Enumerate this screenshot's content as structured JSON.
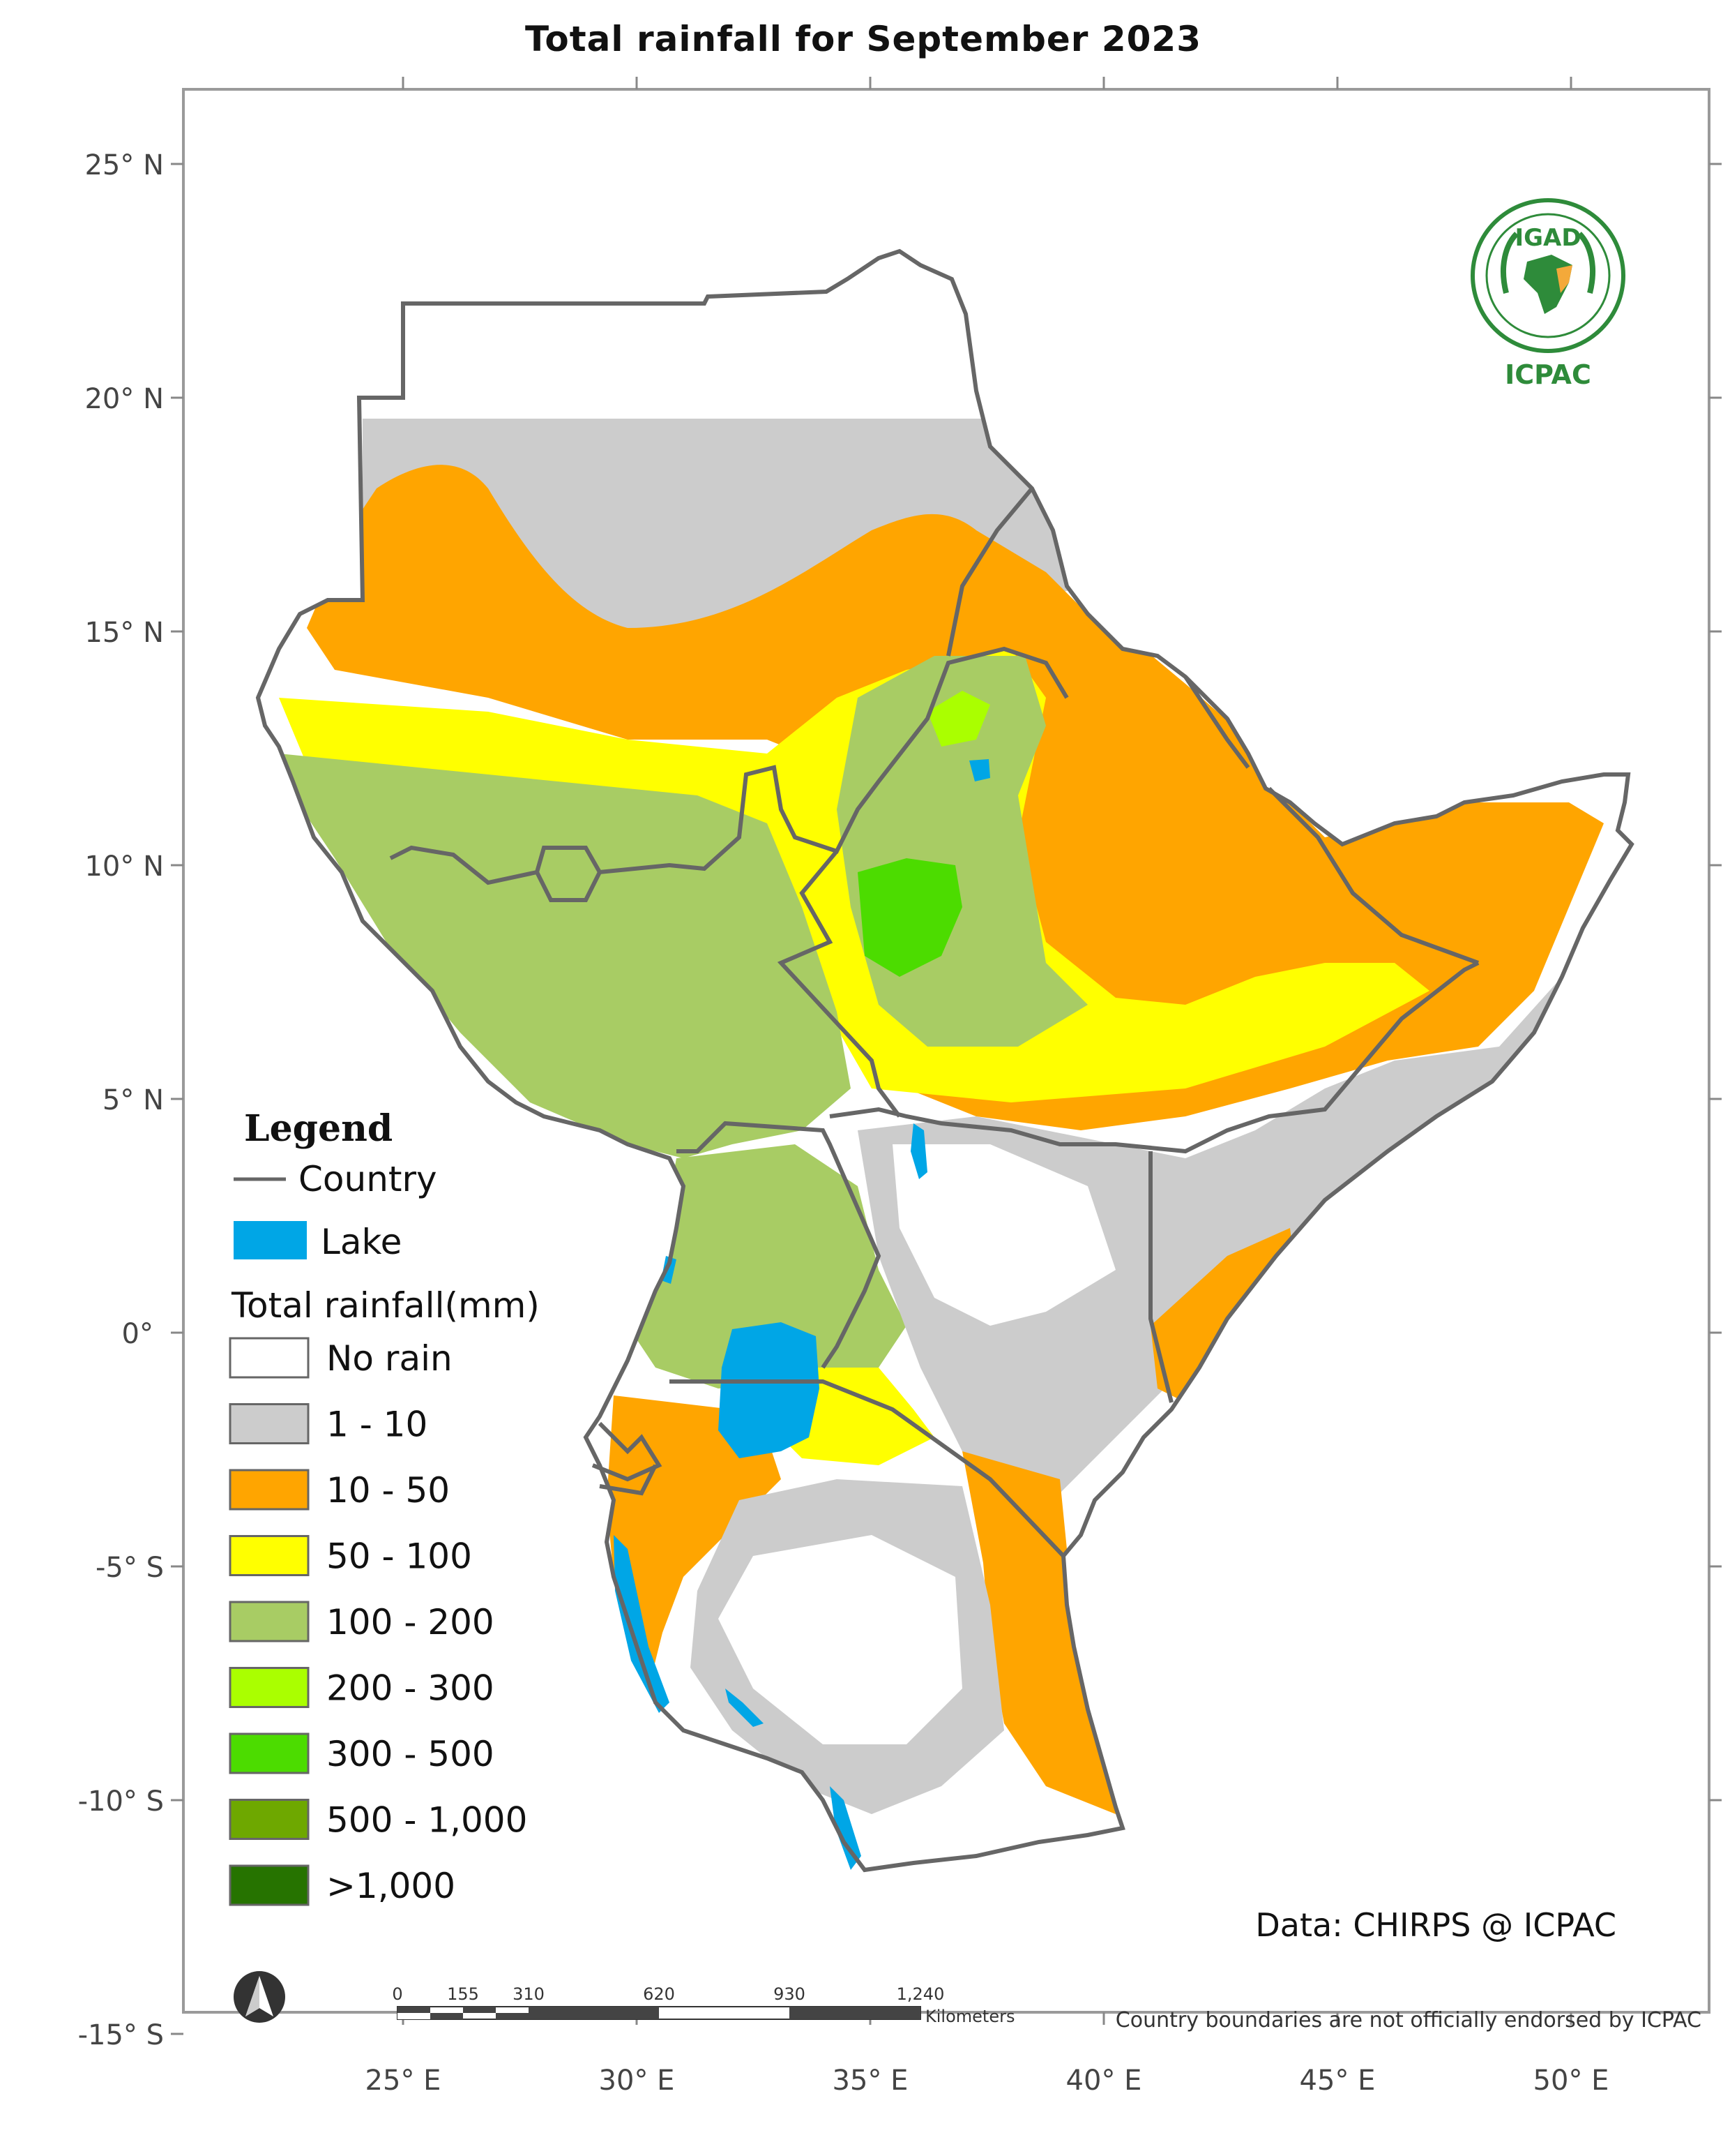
{
  "title": "Total rainfall  for  September  2023",
  "axes": {
    "lat_ticks": [
      "25° N",
      "20° N",
      "15° N",
      "10° N",
      "5° N",
      "0°",
      "-5° S",
      "-10° S",
      "-15° S"
    ],
    "lon_ticks": [
      "25° E",
      "30° E",
      "35° E",
      "40° E",
      "45° E",
      "50° E"
    ]
  },
  "legend": {
    "title": "Legend",
    "country_label": "Country",
    "lake_label": "Lake",
    "rainfall_title": "Total rainfall(mm)",
    "classes": [
      {
        "label": "No rain",
        "color": "#ffffff"
      },
      {
        "label": "1 - 10",
        "color": "#cccccc"
      },
      {
        "label": "10 - 50",
        "color": "#ffa500"
      },
      {
        "label": "50 - 100",
        "color": "#ffff00"
      },
      {
        "label": "100 - 200",
        "color": "#a8cc64"
      },
      {
        "label": "200 - 300",
        "color": "#aaff00"
      },
      {
        "label": "300 - 500",
        "color": "#4cdc00"
      },
      {
        "label": "500 - 1,000",
        "color": "#6ea800"
      },
      {
        "label": ">1,000",
        "color": "#267300"
      }
    ],
    "lake_color": "#00a6e6",
    "border_color": "#666666"
  },
  "scale_bar": {
    "ticks": [
      "0",
      "155",
      "310",
      "620",
      "930",
      "1,240"
    ],
    "unit": "Kilometers"
  },
  "credit": "Data: CHIRPS @ ICPAC",
  "note": "Country boundaries are not officially endorsed by ICPAC",
  "logo": {
    "top_text": "IGAD",
    "bottom_text": "ICPAC"
  },
  "north_arrow_icon": "north-arrow-icon"
}
